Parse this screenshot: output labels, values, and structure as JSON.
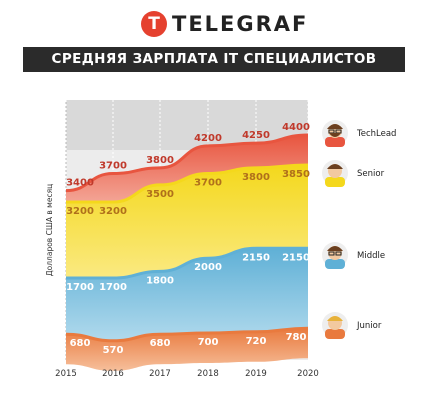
{
  "logo": {
    "mark": "T",
    "text": "TELEGRAF"
  },
  "title": "СРЕДНЯЯ ЗАРПЛАТА IT СПЕЦИАЛИСТОВ",
  "chart_data": {
    "type": "area",
    "x": [
      2015,
      2016,
      2017,
      2018,
      2019,
      2020
    ],
    "ylabel": "Долларов США в месяц",
    "series": [
      {
        "name": "TechLead",
        "values": [
          3400,
          3700,
          3800,
          4200,
          4250,
          4400
        ],
        "color": "#e8553f",
        "label_color": "#c0392b"
      },
      {
        "name": "Senior",
        "values": [
          3200,
          3200,
          3500,
          3700,
          3800,
          3850
        ],
        "color": "#f4d81c",
        "label_color": "#b0701b"
      },
      {
        "name": "Middle",
        "values": [
          1700,
          1700,
          1800,
          2000,
          2150,
          2150
        ],
        "color": "#5fb0d6",
        "label_color": "#ffffff"
      },
      {
        "name": "Junior",
        "values": [
          680,
          570,
          680,
          700,
          720,
          780
        ],
        "color": "#e97a3e",
        "label_color": "#ffffff"
      }
    ],
    "grid": true
  }
}
